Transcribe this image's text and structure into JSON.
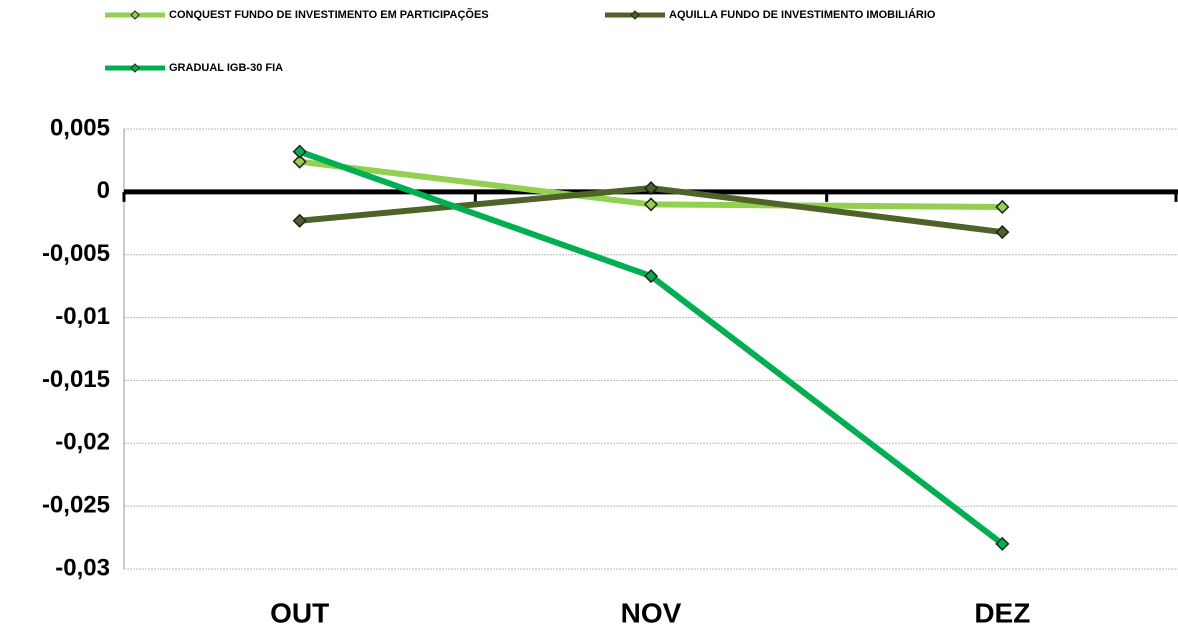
{
  "chart_data": {
    "type": "line",
    "categories": [
      "OUT",
      "NOV",
      "DEZ"
    ],
    "series": [
      {
        "name": "CONQUEST FUNDO DE INVESTIMENTO EM PARTICIPAÇÕES",
        "color": "#92d050",
        "values": [
          0.0024,
          -0.001,
          -0.0012
        ]
      },
      {
        "name": "AQUILLA FUNDO DE INVESTIMENTO IMOBILIÁRIO",
        "color": "#4f6228",
        "values": [
          -0.0023,
          0.0003,
          -0.0032
        ]
      },
      {
        "name": "GRADUAL IGB-30 FIA",
        "color": "#00b050",
        "values": [
          0.0032,
          -0.0067,
          -0.028
        ]
      }
    ],
    "ylim": [
      -0.03,
      0.005
    ],
    "yticks": [
      {
        "value": -0.03,
        "label": "-0,03"
      },
      {
        "value": -0.025,
        "label": "-0,025"
      },
      {
        "value": -0.02,
        "label": "-0,02"
      },
      {
        "value": -0.015,
        "label": "-0,015"
      },
      {
        "value": -0.01,
        "label": "-0,01"
      },
      {
        "value": -0.005,
        "label": "-0,005"
      },
      0,
      {
        "value": 0.005,
        "label": "0,005"
      }
    ],
    "grid": true,
    "legend": "top"
  }
}
